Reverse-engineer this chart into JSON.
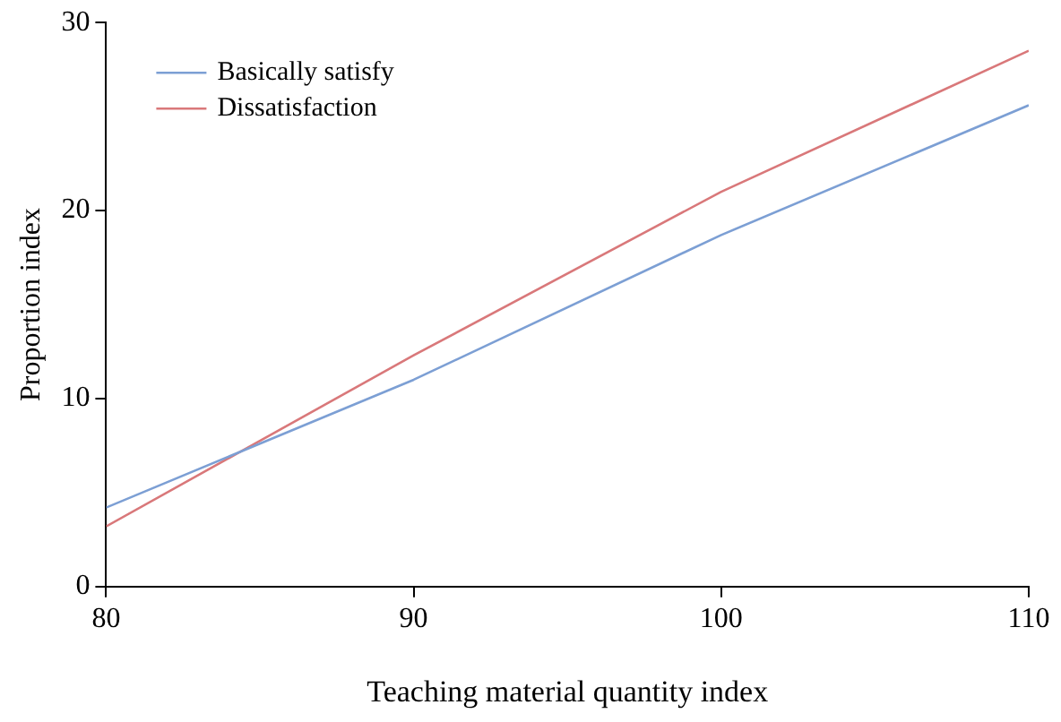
{
  "chart_data": {
    "type": "line",
    "xlabel": "Teaching material quantity index",
    "ylabel": "Proportion index",
    "x": [
      80,
      90,
      100,
      110
    ],
    "series": [
      {
        "name": "Basically satisfy",
        "color": "#7c9fd4",
        "values": [
          4.2,
          11.0,
          18.7,
          25.6
        ]
      },
      {
        "name": "Dissatisfaction",
        "color": "#d9787a",
        "values": [
          3.2,
          12.3,
          21.0,
          28.5
        ]
      }
    ],
    "xlim": [
      80,
      110
    ],
    "xticks": [
      80,
      90,
      100,
      110
    ],
    "ylim": [
      0,
      30
    ],
    "yticks": [
      0,
      10,
      20,
      30
    ],
    "grid": false,
    "legend": "top left",
    "marker": "none",
    "line_style": "solid"
  }
}
